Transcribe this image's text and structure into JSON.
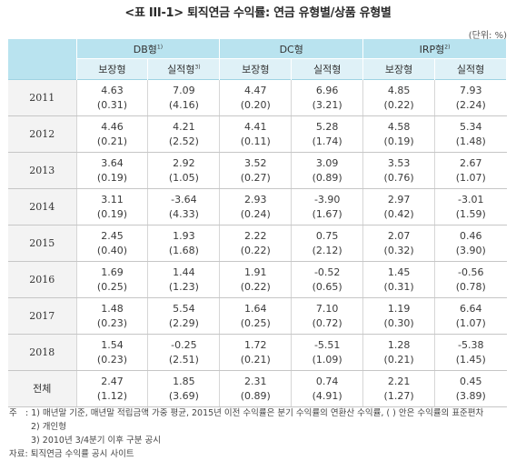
{
  "title": "<표 III-1> 퇴직연금 수익률: 연금 유형별/상품 유형별",
  "unit": "(단위: %)",
  "header": {
    "groups": [
      {
        "label": "DB형",
        "sup": "1)"
      },
      {
        "label": "DC형",
        "sup": ""
      },
      {
        "label": "IRP형",
        "sup": "2)"
      }
    ],
    "subs": [
      {
        "label": "보장형",
        "sup": ""
      },
      {
        "label": "실적형",
        "sup": "3)"
      },
      {
        "label": "보장형",
        "sup": ""
      },
      {
        "label": "실적형",
        "sup": ""
      },
      {
        "label": "보장형",
        "sup": ""
      },
      {
        "label": "실적형",
        "sup": ""
      }
    ]
  },
  "rows": [
    {
      "year": "2011",
      "cells": [
        [
          "4.63",
          "(0.31)"
        ],
        [
          "7.09",
          "(4.16)"
        ],
        [
          "4.47",
          "(0.20)"
        ],
        [
          "6.96",
          "(3.21)"
        ],
        [
          "4.85",
          "(0.22)"
        ],
        [
          "7.93",
          "(2.24)"
        ]
      ]
    },
    {
      "year": "2012",
      "cells": [
        [
          "4.46",
          "(0.21)"
        ],
        [
          "4.21",
          "(2.52)"
        ],
        [
          "4.41",
          "(0.11)"
        ],
        [
          "5.28",
          "(1.74)"
        ],
        [
          "4.58",
          "(0.19)"
        ],
        [
          "5.34",
          "(1.48)"
        ]
      ]
    },
    {
      "year": "2013",
      "cells": [
        [
          "3.64",
          "(0.19)"
        ],
        [
          "2.92",
          "(1.05)"
        ],
        [
          "3.52",
          "(0.27)"
        ],
        [
          "3.09",
          "(0.89)"
        ],
        [
          "3.53",
          "(0.76)"
        ],
        [
          "2.67",
          "(1.07)"
        ]
      ]
    },
    {
      "year": "2014",
      "cells": [
        [
          "3.11",
          "(0.19)"
        ],
        [
          "-3.64",
          "(4.33)"
        ],
        [
          "2.93",
          "(0.24)"
        ],
        [
          "-3.90",
          "(1.67)"
        ],
        [
          "2.97",
          "(0.42)"
        ],
        [
          "-3.01",
          "(1.59)"
        ]
      ]
    },
    {
      "year": "2015",
      "cells": [
        [
          "2.45",
          "(0.40)"
        ],
        [
          "1.93",
          "(1.68)"
        ],
        [
          "2.22",
          "(0.22)"
        ],
        [
          "0.75",
          "(2.12)"
        ],
        [
          "2.07",
          "(0.32)"
        ],
        [
          "0.46",
          "(3.90)"
        ]
      ]
    },
    {
      "year": "2016",
      "cells": [
        [
          "1.69",
          "(0.25)"
        ],
        [
          "1.44",
          "(1.23)"
        ],
        [
          "1.91",
          "(0.22)"
        ],
        [
          "-0.52",
          "(0.65)"
        ],
        [
          "1.45",
          "(0.31)"
        ],
        [
          "-0.56",
          "(0.78)"
        ]
      ]
    },
    {
      "year": "2017",
      "cells": [
        [
          "1.48",
          "(0.23)"
        ],
        [
          "5.54",
          "(2.29)"
        ],
        [
          "1.64",
          "(0.25)"
        ],
        [
          "7.10",
          "(0.72)"
        ],
        [
          "1.19",
          "(0.30)"
        ],
        [
          "6.64",
          "(1.07)"
        ]
      ]
    },
    {
      "year": "2018",
      "cells": [
        [
          "1.54",
          "(0.23)"
        ],
        [
          "-0.25",
          "(2.51)"
        ],
        [
          "1.72",
          "(0.21)"
        ],
        [
          "-5.51",
          "(1.09)"
        ],
        [
          "1.28",
          "(0.21)"
        ],
        [
          "-5.38",
          "(1.45)"
        ]
      ]
    },
    {
      "year": "전체",
      "cells": [
        [
          "2.47",
          "(1.12)"
        ],
        [
          "1.85",
          "(3.69)"
        ],
        [
          "2.31",
          "(0.89)"
        ],
        [
          "0.74",
          "(4.91)"
        ],
        [
          "2.21",
          "(1.27)"
        ],
        [
          "0.45",
          "(3.89)"
        ]
      ]
    }
  ],
  "notes": {
    "lead": "주",
    "items": [
      ": 1) 매년말 기준, 매년말 적립금액 가중 평균, 2015년 이전 수익률은 분기 수익률의 연환산 수익률, ( ) 안은 수익률의 표준편차",
      "2) 개인형",
      "3) 2010년 3/4분기 이후 구분 공시"
    ],
    "source": "자료: 퇴직연금 수익률 공시 사이트"
  }
}
